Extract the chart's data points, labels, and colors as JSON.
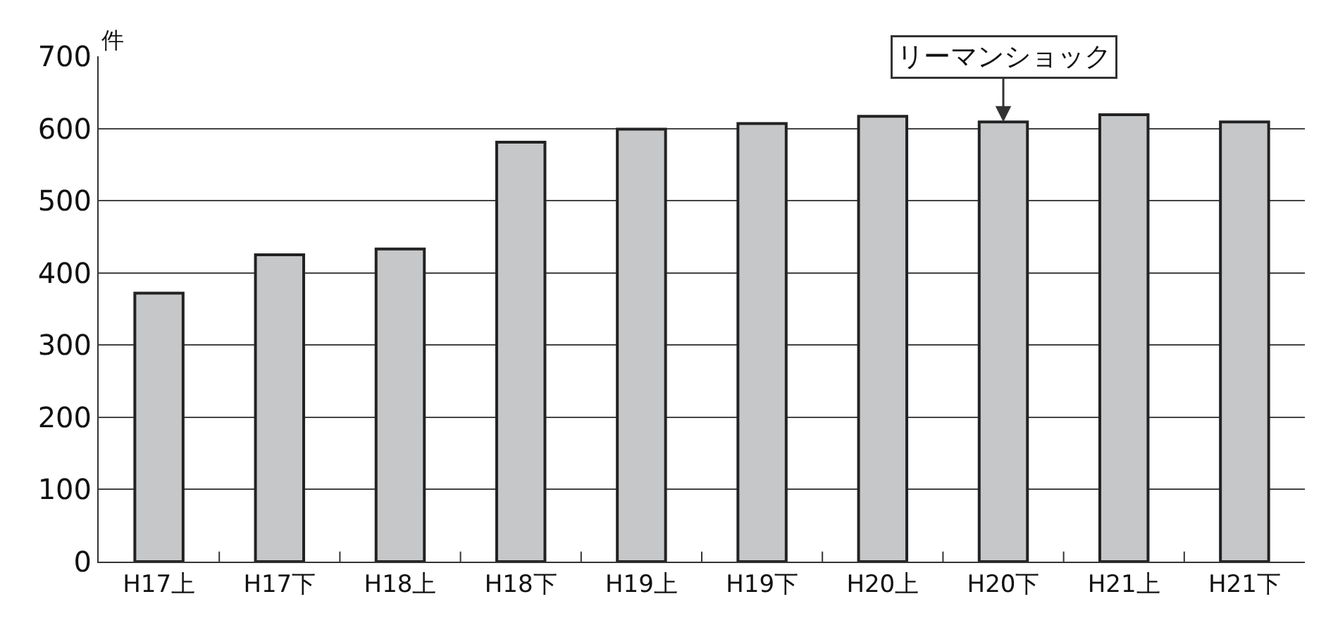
{
  "chart_data": {
    "type": "bar",
    "ylabel": "件",
    "categories": [
      "H17上",
      "H17下",
      "H18上",
      "H18下",
      "H19上",
      "H19下",
      "H20上",
      "H20下",
      "H21上",
      "H21下"
    ],
    "values": [
      372,
      425,
      433,
      581,
      599,
      607,
      617,
      609,
      619,
      609
    ],
    "color": "#c6c7c9",
    "ylim": [
      0,
      700
    ],
    "yticks": [
      0,
      100,
      200,
      300,
      400,
      500,
      600,
      700
    ],
    "grid": "y",
    "legend": false,
    "annotations": [
      {
        "text": "リーマンショック",
        "x": "H20下",
        "y": 609
      }
    ]
  }
}
